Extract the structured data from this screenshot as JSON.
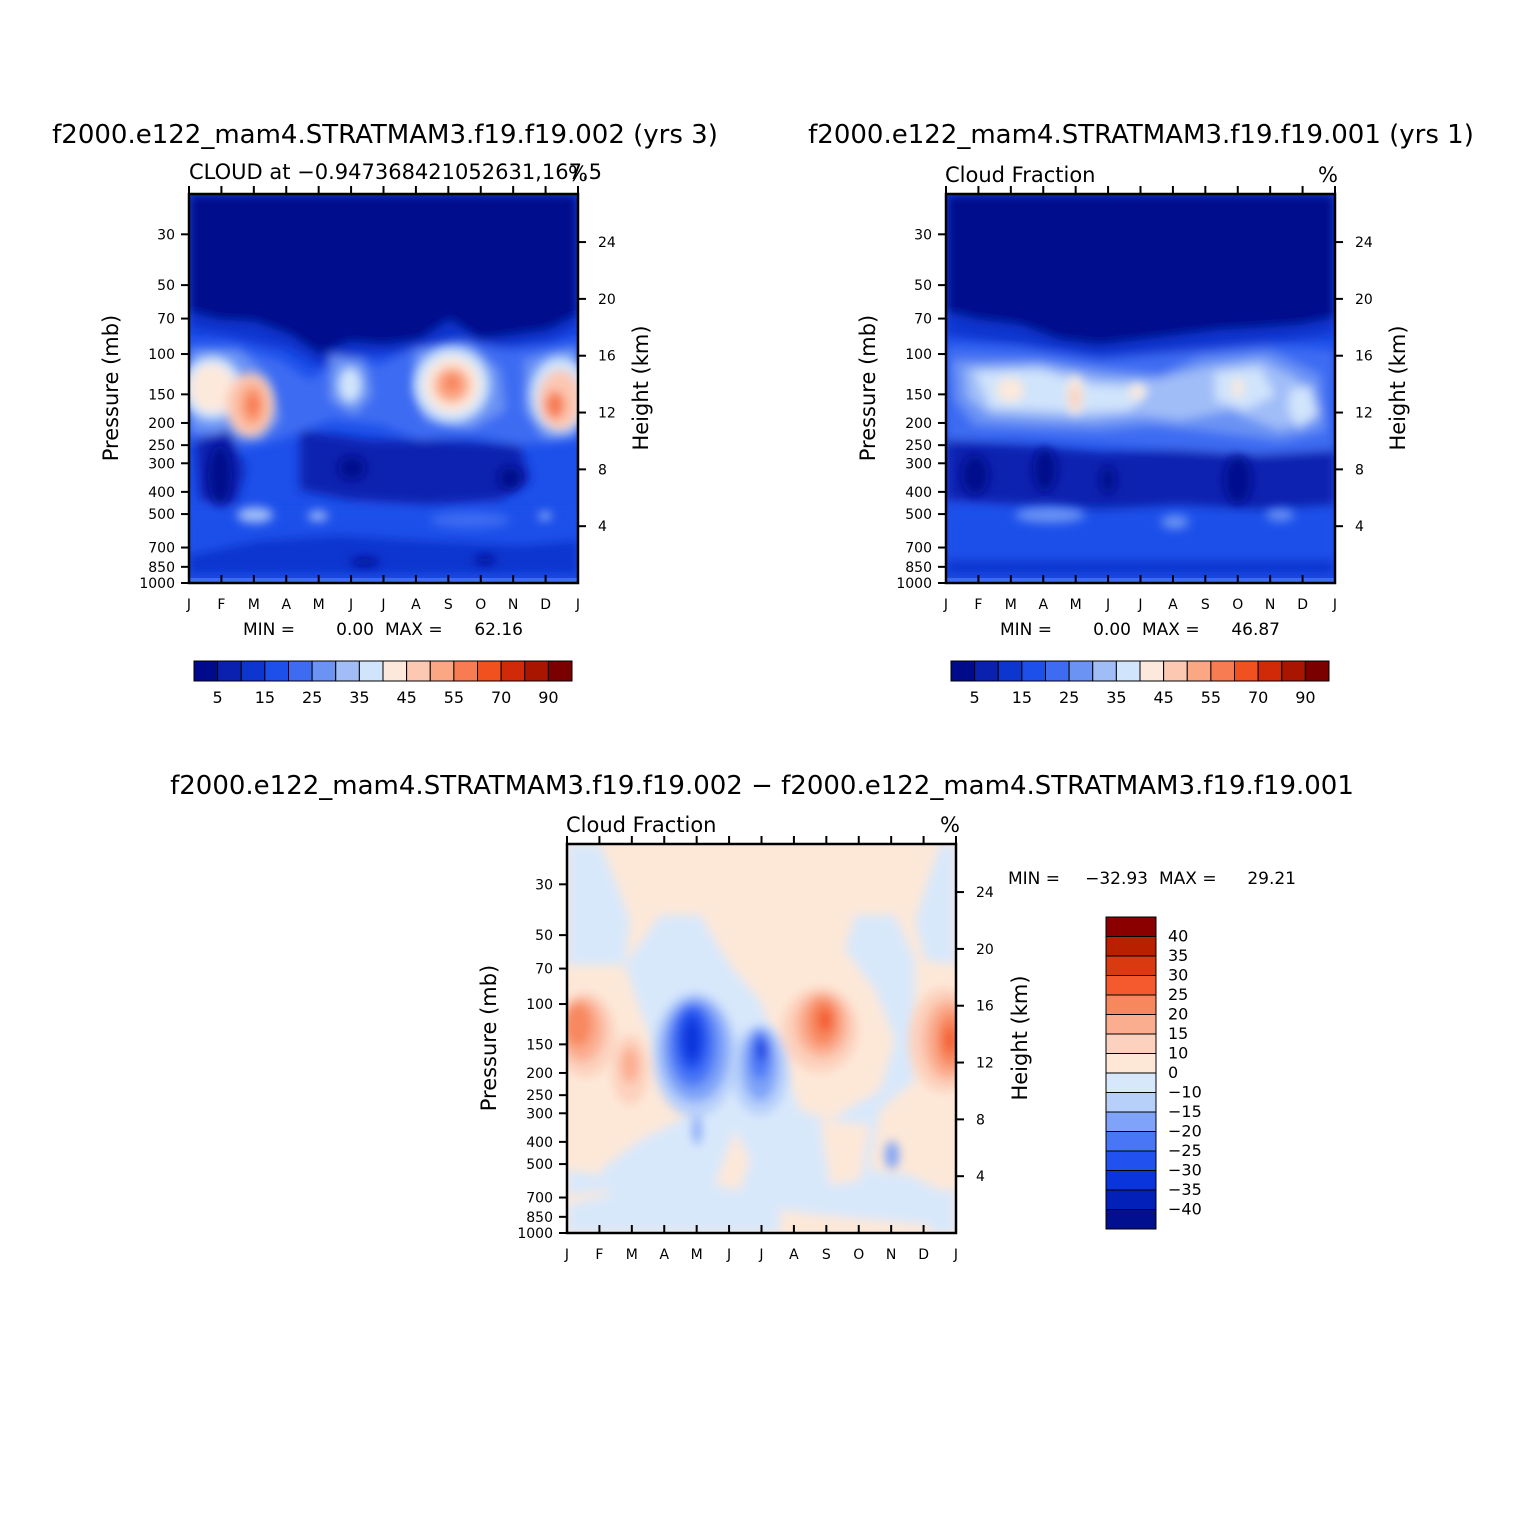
{
  "charts": {
    "top_left": {
      "title": "f2000.e122_mam4.STRATMAM3.f19.f19.002 (yrs 3)",
      "subtitle": "CLOUD at −0.947368421052631,167.5",
      "units": "%",
      "ylabel": "Pressure (mb)",
      "y2label": "Height (km)",
      "stats": {
        "min_label": "MIN =",
        "min": "0.00",
        "max_label": "MAX =",
        "max": "62.16"
      },
      "colorbar_labels": [
        "5",
        "15",
        "25",
        "35",
        "45",
        "55",
        "70",
        "90"
      ]
    },
    "top_right": {
      "title": "f2000.e122_mam4.STRATMAM3.f19.f19.001 (yrs 1)",
      "subtitle": "Cloud Fraction",
      "units": "%",
      "ylabel": "Pressure (mb)",
      "y2label": "Height (km)",
      "stats": {
        "min_label": "MIN =",
        "min": "0.00",
        "max_label": "MAX =",
        "max": "46.87"
      },
      "colorbar_labels": [
        "5",
        "15",
        "25",
        "35",
        "45",
        "55",
        "70",
        "90"
      ]
    },
    "bottom": {
      "title": "f2000.e122_mam4.STRATMAM3.f19.f19.002 − f2000.e122_mam4.STRATMAM3.f19.f19.001",
      "subtitle": "Cloud Fraction",
      "units": "%",
      "ylabel": "Pressure (mb)",
      "y2label": "Height (km)",
      "stats": {
        "min_label": "MIN =",
        "min": "−32.93",
        "max_label": "MAX =",
        "max": "29.21"
      },
      "colorbar_labels": [
        "40",
        "35",
        "30",
        "25",
        "20",
        "15",
        "10",
        "0",
        "−10",
        "−15",
        "−20",
        "−25",
        "−30",
        "−35",
        "−40"
      ]
    }
  },
  "chart_data": [
    {
      "type": "heatmap",
      "title": "f2000.e122_mam4.STRATMAM3.f19.f19.002 (yrs 3)",
      "subtitle": "CLOUD at −0.947368421052631,167.5",
      "x_ticks": [
        "J",
        "F",
        "M",
        "A",
        "M",
        "J",
        "J",
        "A",
        "S",
        "O",
        "N",
        "D",
        "J"
      ],
      "y_ticks_pressure": [
        30,
        50,
        70,
        100,
        150,
        200,
        250,
        300,
        400,
        500,
        700,
        850,
        1000
      ],
      "y_ticks_height": [
        24,
        20,
        16,
        12,
        8,
        4
      ],
      "ylabel": "Pressure (mb)",
      "y2label": "Height (km)",
      "levels": [
        5,
        10,
        15,
        20,
        25,
        30,
        35,
        40,
        45,
        50,
        55,
        60,
        70,
        80,
        90
      ],
      "colors": [
        "#000b8c",
        "#0a21b0",
        "#0d36cf",
        "#1d4fea",
        "#3d6cf2",
        "#6a93f4",
        "#a0bdf8",
        "#d0e4fb",
        "#fde9dc",
        "#fcc8b2",
        "#fba784",
        "#f77c52",
        "#f1511f",
        "#d12a08",
        "#a81600",
        "#7a0000"
      ],
      "min": 0.0,
      "max": 62.16
    },
    {
      "type": "heatmap",
      "title": "f2000.e122_mam4.STRATMAM3.f19.f19.001 (yrs 1)",
      "subtitle": "Cloud Fraction",
      "x_ticks": [
        "J",
        "F",
        "M",
        "A",
        "M",
        "J",
        "J",
        "A",
        "S",
        "O",
        "N",
        "D",
        "J"
      ],
      "y_ticks_pressure": [
        30,
        50,
        70,
        100,
        150,
        200,
        250,
        300,
        400,
        500,
        700,
        850,
        1000
      ],
      "y_ticks_height": [
        24,
        20,
        16,
        12,
        8,
        4
      ],
      "ylabel": "Pressure (mb)",
      "y2label": "Height (km)",
      "levels": [
        5,
        10,
        15,
        20,
        25,
        30,
        35,
        40,
        45,
        50,
        55,
        60,
        70,
        80,
        90
      ],
      "min": 0.0,
      "max": 46.87
    },
    {
      "type": "heatmap",
      "title": "f2000.e122_mam4.STRATMAM3.f19.f19.002 − f2000.e122_mam4.STRATMAM3.f19.f19.001",
      "subtitle": "Cloud Fraction",
      "x_ticks": [
        "J",
        "F",
        "M",
        "A",
        "M",
        "J",
        "J",
        "A",
        "S",
        "O",
        "N",
        "D",
        "J"
      ],
      "y_ticks_pressure": [
        30,
        50,
        70,
        100,
        150,
        200,
        250,
        300,
        400,
        500,
        700,
        850,
        1000
      ],
      "y_ticks_height": [
        24,
        20,
        16,
        12,
        8,
        4
      ],
      "ylabel": "Pressure (mb)",
      "y2label": "Height (km)",
      "levels": [
        -40,
        -35,
        -30,
        -25,
        -20,
        -15,
        -10,
        0,
        10,
        15,
        20,
        25,
        30,
        35,
        40
      ],
      "colors": [
        "#00108f",
        "#0321b8",
        "#0a35dc",
        "#2152f0",
        "#4876f6",
        "#7ea3f8",
        "#b7d0fa",
        "#d8e8fb",
        "#fde8d8",
        "#fcd1bd",
        "#fbad90",
        "#f7885e",
        "#f45a2e",
        "#d93a10",
        "#b82000",
        "#8a0000"
      ],
      "min": -32.93,
      "max": 29.21
    }
  ]
}
